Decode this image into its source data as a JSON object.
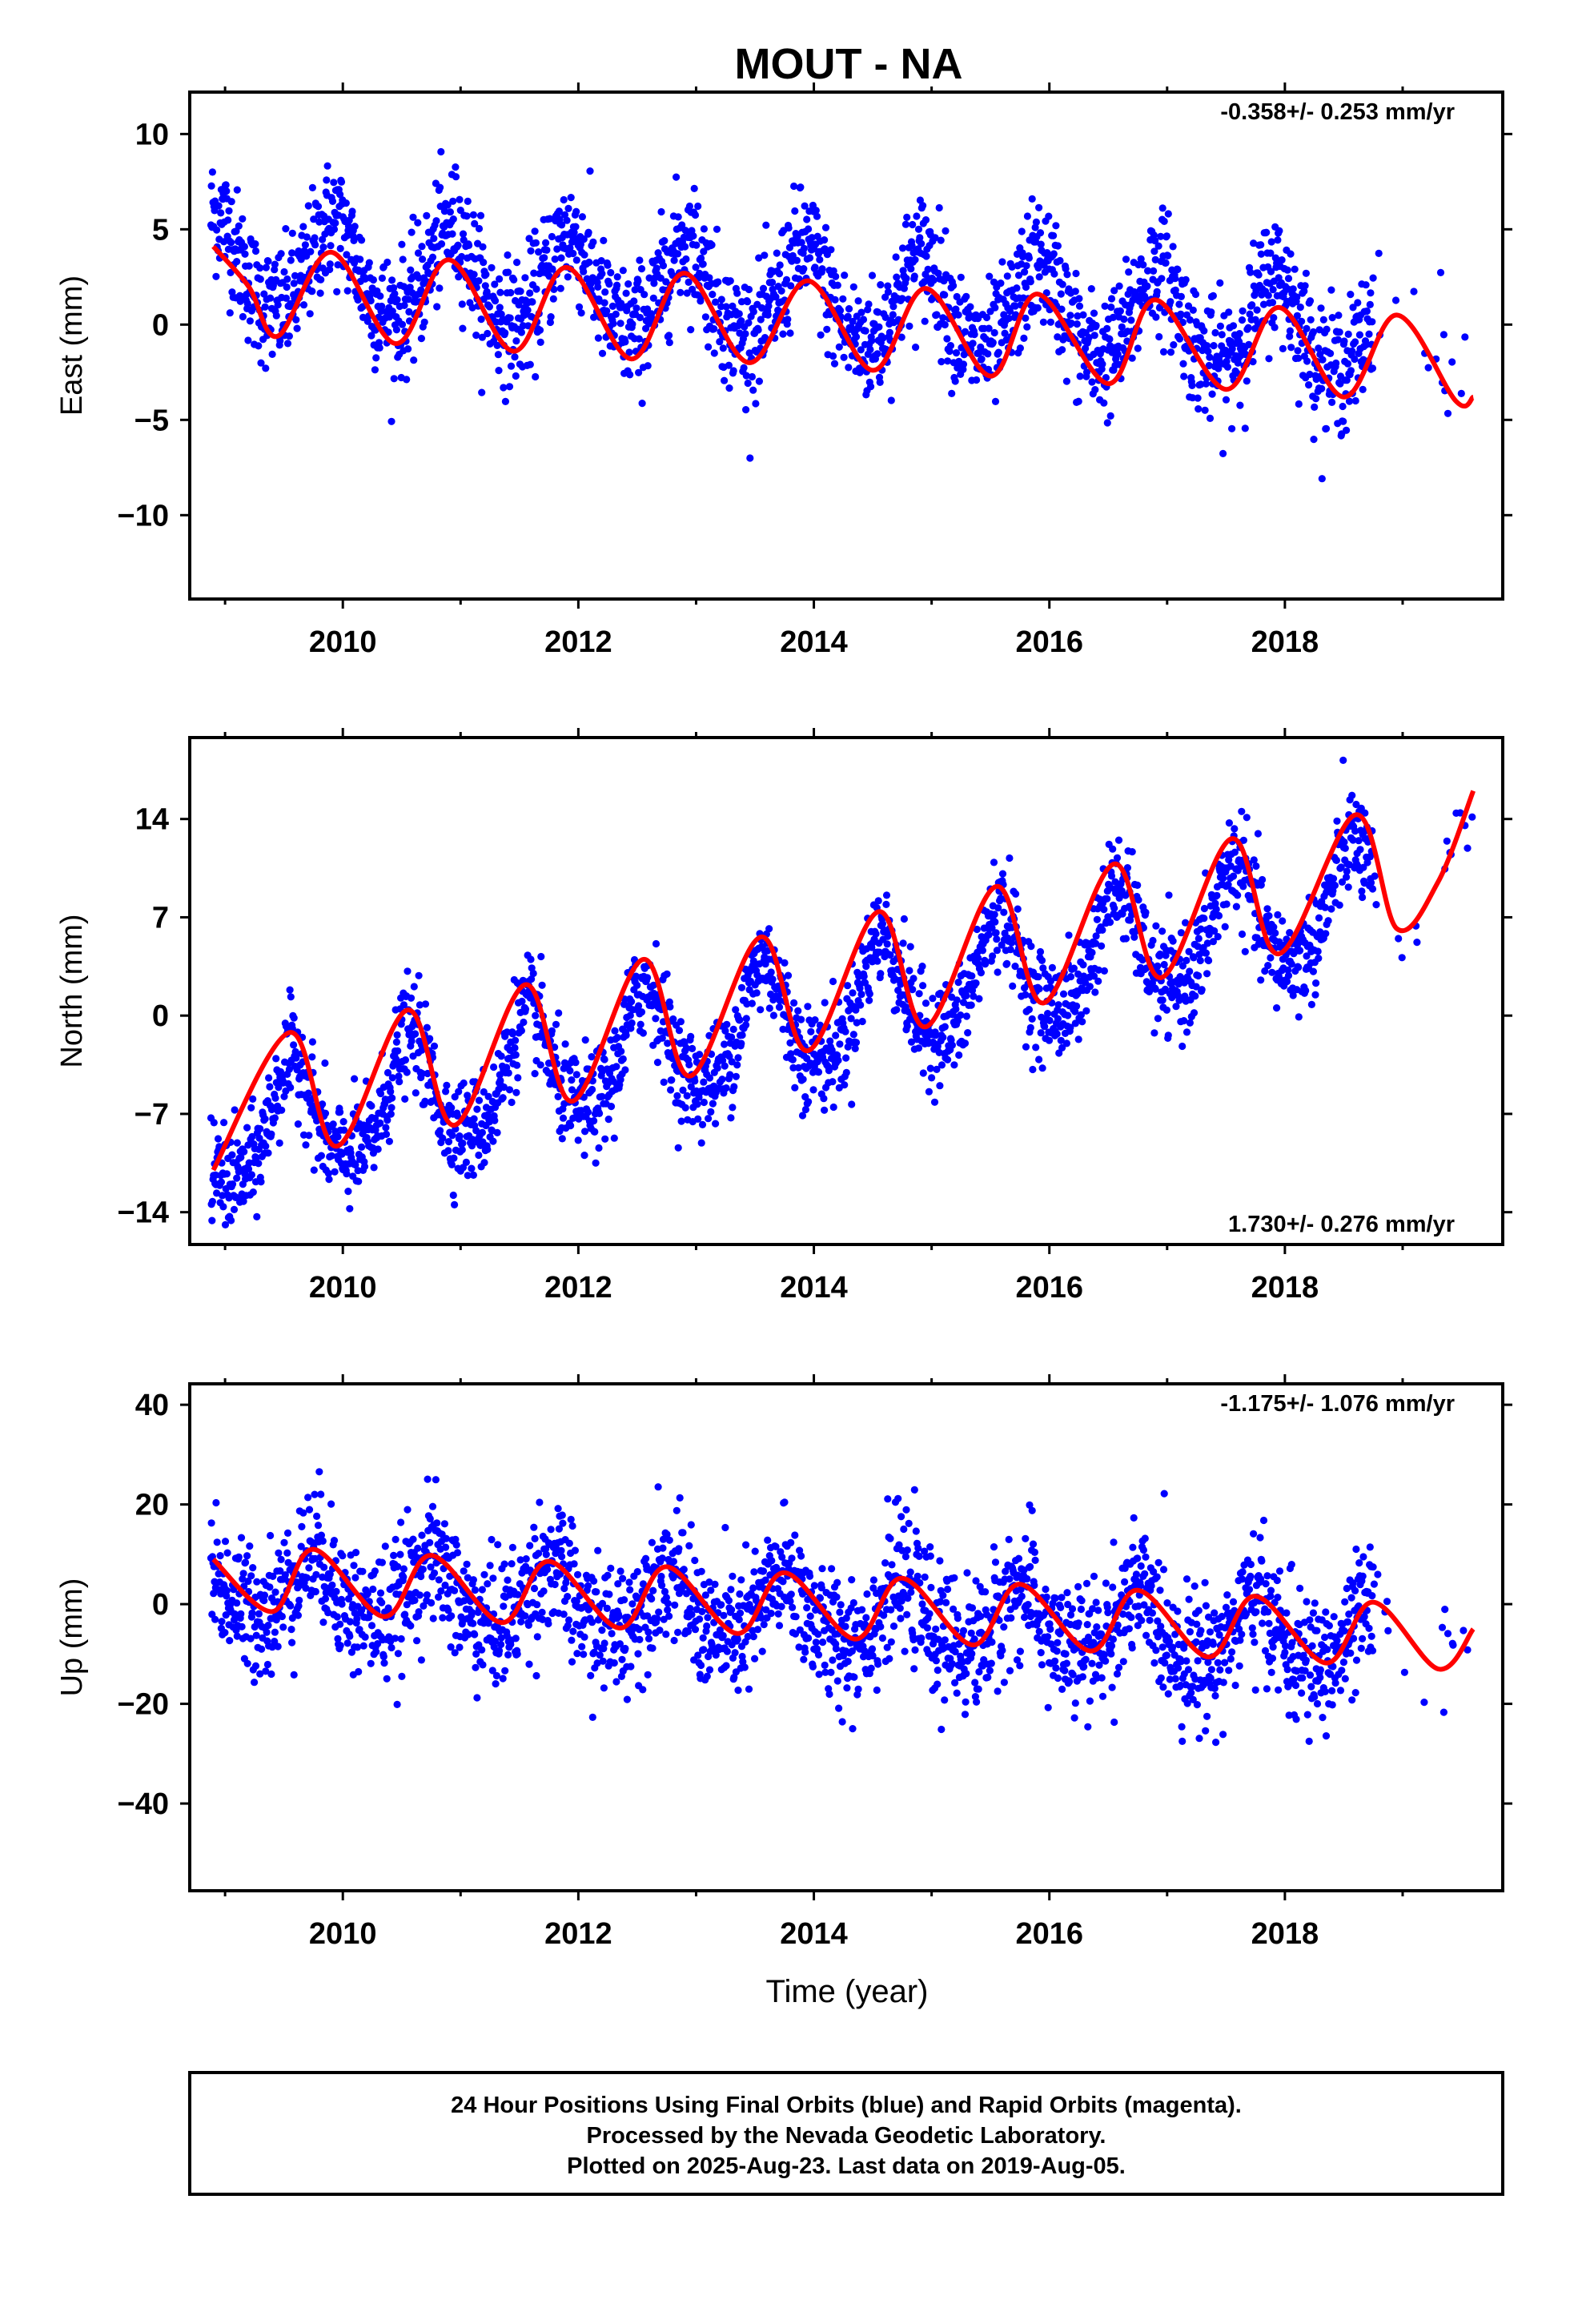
{
  "title": "MOUT - NA",
  "xlabel": "Time (year)",
  "footer": {
    "line1": "24 Hour Positions Using Final Orbits (blue) and Rapid Orbits (magenta).",
    "line2": "Processed by the Nevada Geodetic Laboratory.",
    "line3": "Plotted on 2025-Aug-23. Last data on 2019-Aug-05."
  },
  "colors": {
    "data_points": "#0000ff",
    "model_curve": "#ff0000",
    "frame": "#000000"
  },
  "chart_data": [
    {
      "type": "scatter",
      "id": "east",
      "ylabel": "East (mm)",
      "rate_text": "-0.358+/- 0.253 mm/yr",
      "rate_placement": "top-right",
      "xlim": [
        2008.7,
        2019.85
      ],
      "ylim": [
        -14.4,
        12.2
      ],
      "xticks": [
        2010,
        2012,
        2014,
        2016,
        2018
      ],
      "xtick_labels": [
        "2010",
        "2012",
        "2014",
        "2016",
        "2018"
      ],
      "yticks": [
        10,
        5,
        0,
        -5,
        -10
      ],
      "ytick_labels": [
        "10",
        "5",
        "0",
        "−5",
        "−10"
      ],
      "data_span": [
        2008.88,
        2019.6
      ],
      "model": {
        "offset": 1.3,
        "rate": -0.358,
        "ref_year": 2014.0,
        "annual_amp": 2.4,
        "annual_phase_peak": 2008.92,
        "semiannual_amp": 0.3
      },
      "scatter_sd": 1.6,
      "curve": {
        "x": [
          2008.9,
          2009.2,
          2009.45,
          2009.9,
          2010.45,
          2010.9,
          2011.45,
          2011.9,
          2012.45,
          2012.9,
          2013.45,
          2013.95,
          2014.5,
          2014.95,
          2015.5,
          2015.9,
          2016.5,
          2016.9,
          2017.5,
          2017.95,
          2018.5,
          2018.95,
          2019.45,
          2019.6
        ],
        "y": [
          4.1,
          2.0,
          -0.6,
          3.8,
          -1.0,
          3.4,
          -1.4,
          3.0,
          -1.8,
          2.7,
          -2.0,
          2.3,
          -2.4,
          1.9,
          -2.7,
          1.6,
          -3.1,
          1.3,
          -3.4,
          0.9,
          -3.8,
          0.5,
          -4.0,
          -3.8
        ]
      }
    },
    {
      "type": "scatter",
      "id": "north",
      "ylabel": "North (mm)",
      "rate_text": "1.730+/- 0.276 mm/yr",
      "rate_placement": "bottom-right",
      "xlim": [
        2008.7,
        2019.85
      ],
      "ylim": [
        -16.3,
        19.8
      ],
      "xticks": [
        2010,
        2012,
        2014,
        2016,
        2018
      ],
      "xtick_labels": [
        "2010",
        "2012",
        "2014",
        "2016",
        "2018"
      ],
      "yticks": [
        14,
        7,
        0,
        -7,
        -14
      ],
      "ytick_labels": [
        "14",
        "7",
        "0",
        "−7",
        "−14"
      ],
      "data_span": [
        2008.88,
        2019.6
      ],
      "model": {
        "offset": 0.0,
        "rate": 1.73,
        "ref_year": 2014.0,
        "annual_amp": 3.9,
        "annual_phase_peak": 2008.57,
        "semiannual_amp": 0.8
      },
      "scatter_sd": 1.8,
      "curve": {
        "x": [
          2008.9,
          2009.55,
          2009.95,
          2010.55,
          2010.95,
          2011.55,
          2011.95,
          2012.55,
          2012.95,
          2013.55,
          2013.95,
          2014.55,
          2014.95,
          2015.55,
          2015.95,
          2016.55,
          2016.95,
          2017.55,
          2017.95,
          2018.6,
          2018.95,
          2019.3,
          2019.6
        ],
        "y": [
          -11.0,
          -1.2,
          -9.3,
          0.4,
          -7.8,
          2.2,
          -6.1,
          4.0,
          -4.3,
          5.6,
          -2.5,
          7.4,
          -0.8,
          9.2,
          0.9,
          10.8,
          2.7,
          12.6,
          4.4,
          14.3,
          6.2,
          9.5,
          16.0
        ]
      }
    },
    {
      "type": "scatter",
      "id": "up",
      "ylabel": "Up (mm)",
      "rate_text": "-1.175+/- 1.076 mm/yr",
      "rate_placement": "top-right",
      "xlim": [
        2008.7,
        2019.85
      ],
      "ylim": [
        -57.5,
        44.2
      ],
      "xticks": [
        2010,
        2012,
        2014,
        2016,
        2018
      ],
      "xtick_labels": [
        "2010",
        "2012",
        "2014",
        "2016",
        "2018"
      ],
      "yticks": [
        40,
        20,
        0,
        -20,
        -40
      ],
      "ytick_labels": [
        "40",
        "20",
        "0",
        "−20",
        "−40"
      ],
      "data_span": [
        2008.88,
        2019.6
      ],
      "model": {
        "offset": -2.0,
        "rate": -1.175,
        "ref_year": 2014.0,
        "annual_amp": 6.2,
        "annual_phase_peak": 2008.75,
        "semiannual_amp": 1.2
      },
      "scatter_sd": 6.5,
      "curve": {
        "x": [
          2008.9,
          2009.4,
          2009.75,
          2010.35,
          2010.75,
          2011.35,
          2011.75,
          2012.35,
          2012.75,
          2013.35,
          2013.75,
          2014.35,
          2014.75,
          2015.35,
          2015.75,
          2016.35,
          2016.75,
          2017.35,
          2017.75,
          2018.35,
          2018.75,
          2019.3,
          2019.6
        ],
        "y": [
          9.0,
          -1.5,
          11.0,
          -2.5,
          9.8,
          -3.7,
          8.6,
          -4.8,
          7.5,
          -5.9,
          6.3,
          -7.0,
          5.2,
          -8.2,
          4.0,
          -9.4,
          2.8,
          -10.6,
          1.6,
          -11.8,
          0.4,
          -13.0,
          -5.0
        ]
      }
    }
  ]
}
